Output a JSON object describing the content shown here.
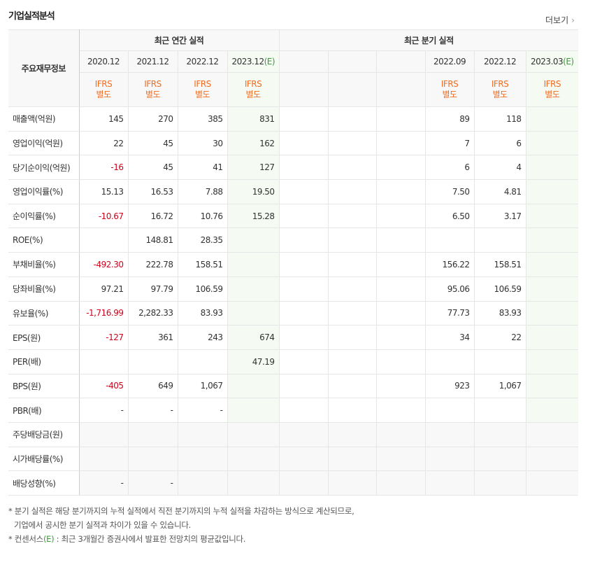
{
  "header": {
    "title": "기업실적분석",
    "more": "더보기"
  },
  "table": {
    "corner": "주요재무정보",
    "annual_title": "최근 연간 실적",
    "quarterly_title": "최근 분기 실적",
    "columns": [
      {
        "period": "2020.12",
        "standard": "IFRS",
        "basis": "별도"
      },
      {
        "period": "2021.12",
        "standard": "IFRS",
        "basis": "별도"
      },
      {
        "period": "2022.12",
        "standard": "IFRS",
        "basis": "별도"
      },
      {
        "period": "2023.12",
        "estimate": "(E)",
        "standard": "IFRS",
        "basis": "별도"
      },
      null,
      null,
      null,
      {
        "period": "2022.09",
        "standard": "IFRS",
        "basis": "별도"
      },
      {
        "period": "2022.12",
        "standard": "IFRS",
        "basis": "별도"
      },
      {
        "period": "2023.03",
        "estimate": "(E)",
        "standard": "IFRS",
        "basis": "별도"
      }
    ],
    "groups": [
      {
        "rows": [
          {
            "label": "매출액(억원)",
            "cells": [
              "145",
              "270",
              "385",
              "831",
              null,
              null,
              null,
              "89",
              "118",
              null
            ]
          },
          {
            "label": "영업이익(억원)",
            "cells": [
              "22",
              "45",
              "30",
              "162",
              null,
              null,
              null,
              "7",
              "6",
              null
            ]
          },
          {
            "label": "당기순이익(억원)",
            "cells": [
              "-16",
              "45",
              "41",
              "127",
              null,
              null,
              null,
              "6",
              "4",
              null
            ]
          }
        ]
      },
      {
        "rows": [
          {
            "label": "영업이익률(%)",
            "cells": [
              "15.13",
              "16.53",
              "7.88",
              "19.50",
              null,
              null,
              null,
              "7.50",
              "4.81",
              null
            ]
          },
          {
            "label": "순이익률(%)",
            "cells": [
              "-10.67",
              "16.72",
              "10.76",
              "15.28",
              null,
              null,
              null,
              "6.50",
              "3.17",
              null
            ]
          },
          {
            "label": "ROE(%)",
            "cells": [
              null,
              "148.81",
              "28.35",
              null,
              null,
              null,
              null,
              null,
              null,
              null
            ]
          }
        ]
      },
      {
        "rows": [
          {
            "label": "부채비율(%)",
            "cells": [
              "-492.30",
              "222.78",
              "158.51",
              null,
              null,
              null,
              null,
              "156.22",
              "158.51",
              null
            ]
          },
          {
            "label": "당좌비율(%)",
            "cells": [
              "97.21",
              "97.79",
              "106.59",
              null,
              null,
              null,
              null,
              "95.06",
              "106.59",
              null
            ]
          },
          {
            "label": "유보율(%)",
            "cells": [
              "-1,716.99",
              "2,282.33",
              "83.93",
              null,
              null,
              null,
              null,
              "77.73",
              "83.93",
              null
            ]
          }
        ]
      },
      {
        "rows": [
          {
            "label": "EPS(원)",
            "cells": [
              "-127",
              "361",
              "243",
              "674",
              null,
              null,
              null,
              "34",
              "22",
              null
            ]
          },
          {
            "label": "PER(배)",
            "cells": [
              null,
              null,
              null,
              "47.19",
              null,
              null,
              null,
              null,
              null,
              null
            ]
          },
          {
            "label": "BPS(원)",
            "cells": [
              "-405",
              "649",
              "1,067",
              null,
              null,
              null,
              null,
              "923",
              "1,067",
              null
            ]
          },
          {
            "label": "PBR(배)",
            "cells": [
              "-",
              "-",
              "-",
              null,
              null,
              null,
              null,
              null,
              null,
              null
            ]
          }
        ]
      },
      {
        "shaded": true,
        "rows": [
          {
            "label": "주당배당금(원)",
            "cells": [
              null,
              null,
              null,
              null,
              null,
              null,
              null,
              null,
              null,
              null
            ]
          },
          {
            "label": "시가배당률(%)",
            "cells": [
              null,
              null,
              null,
              null,
              null,
              null,
              null,
              null,
              null,
              null
            ]
          },
          {
            "label": "배당성향(%)",
            "cells": [
              "-",
              "-",
              null,
              null,
              null,
              null,
              null,
              null,
              null,
              null
            ]
          }
        ]
      }
    ]
  },
  "notes": {
    "note1_line1": "* 분기 실적은 해당 분기까지의 누적 실적에서 직전 분기까지의 누적 실적을 차감하는 방식으로 계산되므로,",
    "note1_line2": "기업에서 공시한 분기 실적과 차이가 있을 수 있습니다.",
    "note2_prefix": "* 컨센서스",
    "note2_mark": "(E)",
    "note2_text": " : 최근 3개월간 증권사에서 발표한 전망치의 평균값입니다."
  }
}
